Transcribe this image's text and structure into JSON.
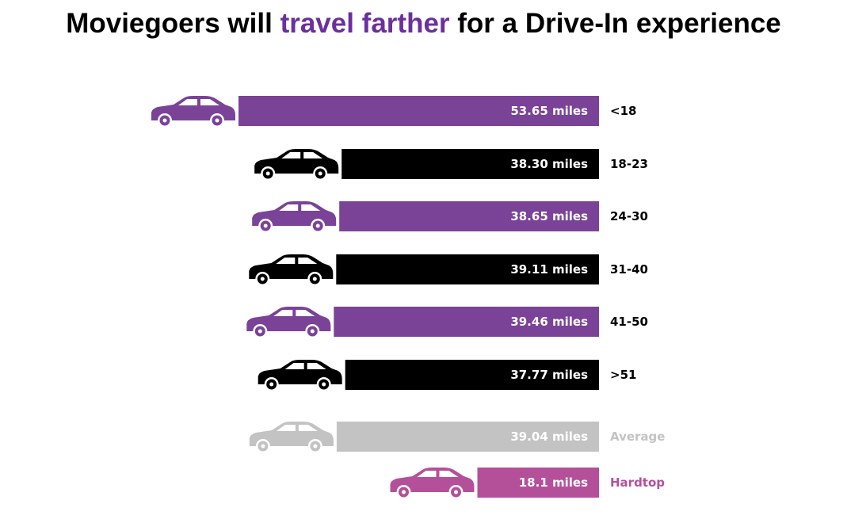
{
  "title": {
    "part1": "Moviegoers will ",
    "highlight": "travel farther",
    "part2": " for a Drive-In experience"
  },
  "colors": {
    "purple": "#7a4397",
    "black": "#000000",
    "gray": "#c4c3c4",
    "magenta": "#b4509a",
    "title_highlight": "#6b2f9e"
  },
  "chart_data": {
    "type": "bar",
    "orientation": "horizontal",
    "unit": "miles",
    "categories": [
      "<18",
      "18-23",
      "24-30",
      "31-40",
      "41-50",
      ">51",
      "Average",
      "Hardtop"
    ],
    "values": [
      53.65,
      38.3,
      38.65,
      39.11,
      39.46,
      37.77,
      39.04,
      18.1
    ],
    "value_labels": [
      "53.65 miles",
      "38.30 miles",
      "38.65 miles",
      "39.11 miles",
      "39.46 miles",
      "37.77 miles",
      "39.04 miles",
      "18.1 miles"
    ],
    "bar_colors": [
      "purple",
      "black",
      "purple",
      "black",
      "purple",
      "black",
      "gray",
      "magenta"
    ],
    "label_colors": [
      "black",
      "black",
      "black",
      "black",
      "black",
      "black",
      "gray",
      "magenta"
    ],
    "icon": "car-icon",
    "title": "",
    "xlabel": "",
    "ylabel": "",
    "grid": false,
    "legend": "none"
  }
}
